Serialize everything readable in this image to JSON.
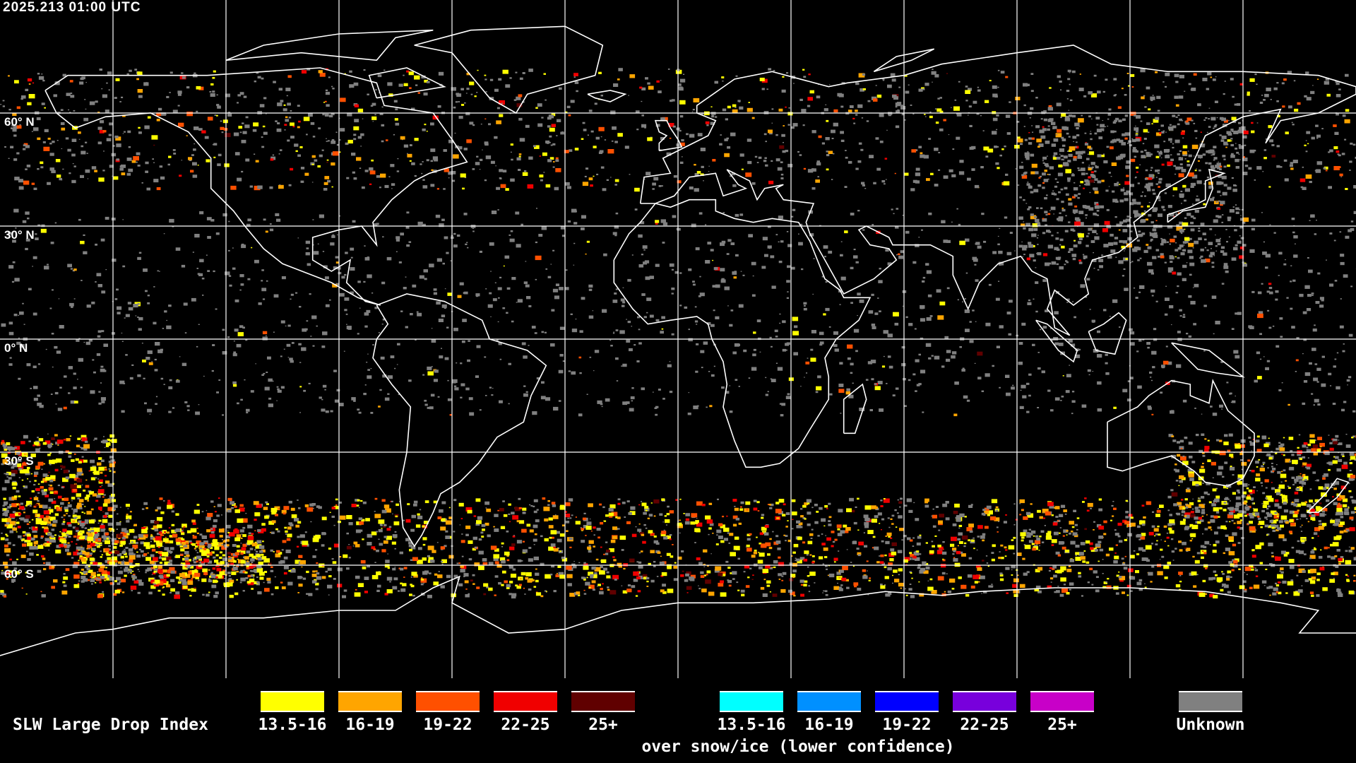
{
  "title": "2025.213 01:00 UTC",
  "map": {
    "projection": "equirectangular",
    "lon_range": [
      -180,
      180
    ],
    "lat_range": [
      -90,
      90
    ],
    "grid_step_degrees": 30,
    "lat_labels": [
      "60° N",
      "30° N",
      "0° N",
      "30° S",
      "60° S"
    ],
    "grid_color": "#ffffff",
    "coastline_color": "#ffffff"
  },
  "legend": {
    "title": "SLW Large Drop Index",
    "normal": [
      {
        "label": "13.5-16",
        "color": "#ffff00"
      },
      {
        "label": "16-19",
        "color": "#ffa500"
      },
      {
        "label": "19-22",
        "color": "#ff5000"
      },
      {
        "label": "22-25",
        "color": "#f00000"
      },
      {
        "label": "25+",
        "color": "#600000"
      }
    ],
    "snow_ice": [
      {
        "label": "13.5-16",
        "color": "#00ffff"
      },
      {
        "label": "16-19",
        "color": "#0090ff"
      },
      {
        "label": "19-22",
        "color": "#0000ff"
      },
      {
        "label": "22-25",
        "color": "#7800dc"
      },
      {
        "label": "25+",
        "color": "#c800c8"
      }
    ],
    "snow_ice_caption": "over snow/ice (lower confidence)",
    "unknown": {
      "label": "Unknown",
      "color": "#808080"
    }
  }
}
